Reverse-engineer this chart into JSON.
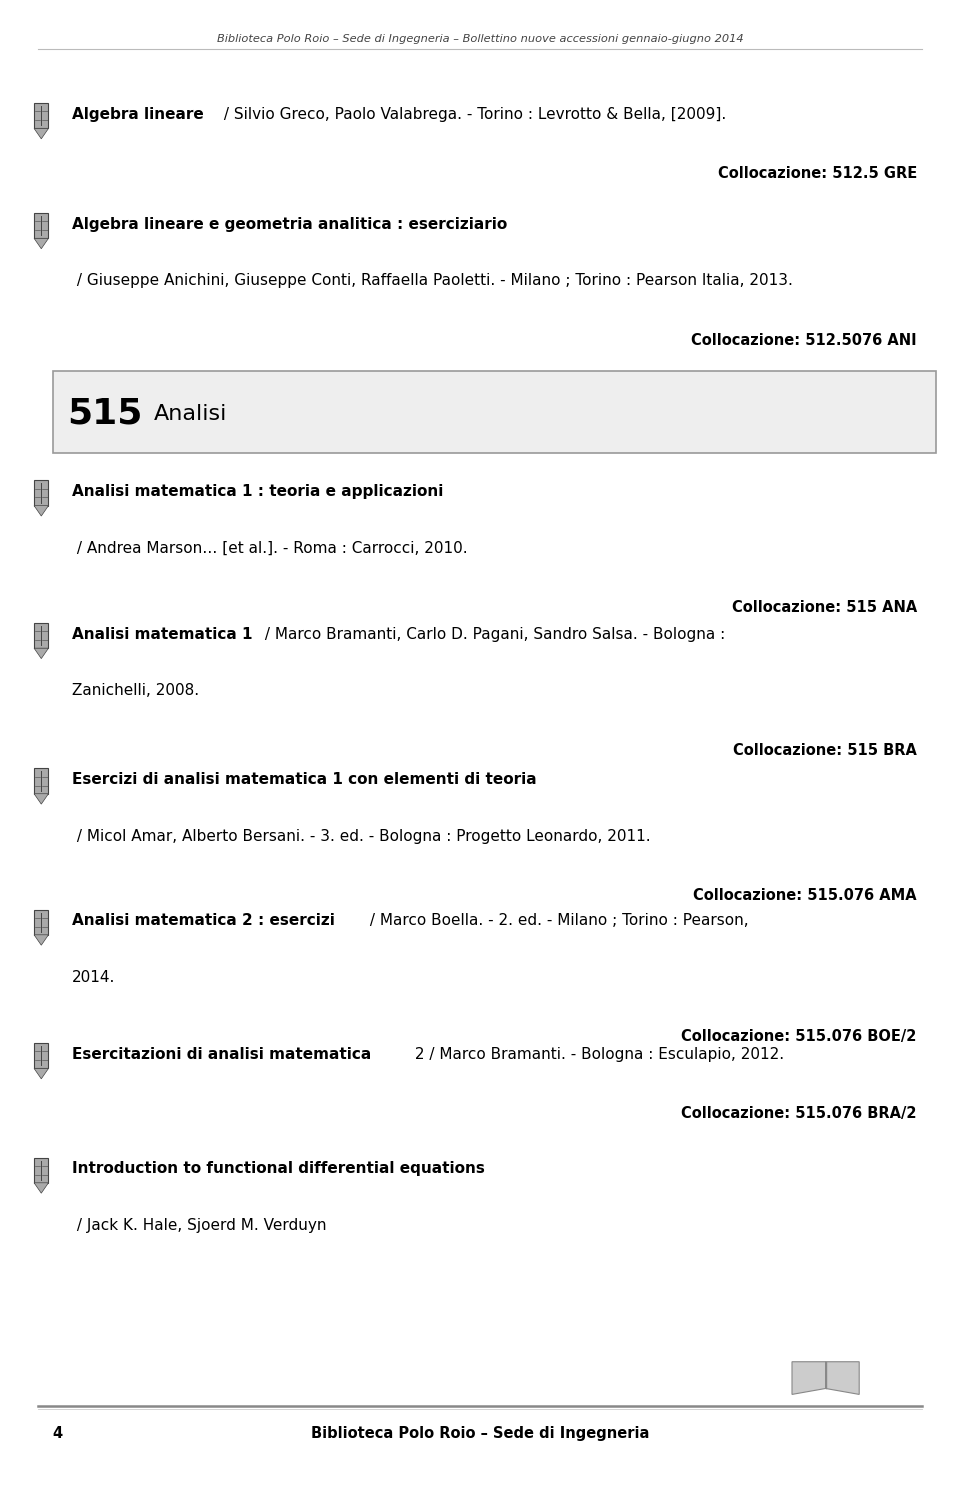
{
  "header_text": "Biblioteca Polo Roio – Sede di Ingegneria – Bollettino nuove accessioni gennaio-giugno 2014",
  "footer_page": "4",
  "footer_text": "Biblioteca Polo Roio – Sede di Ingegneria",
  "bg_color": "#ffffff",
  "text_color": "#000000",
  "lm": 0.075,
  "rm": 0.955,
  "header_fontsize": 8.2,
  "body_fontsize": 11.0,
  "coll_fontsize": 10.5,
  "section_num_fontsize": 26,
  "section_title_fontsize": 16,
  "footer_fontsize": 10.5,
  "icon_color": "#666666",
  "icon_edge": "#444444",
  "icon_face": "#aaaaaa",
  "section_face": "#eeeeee",
  "section_edge": "#999999",
  "line_color": "#bbbbbb",
  "footer_line_color": "#aaaaaa"
}
